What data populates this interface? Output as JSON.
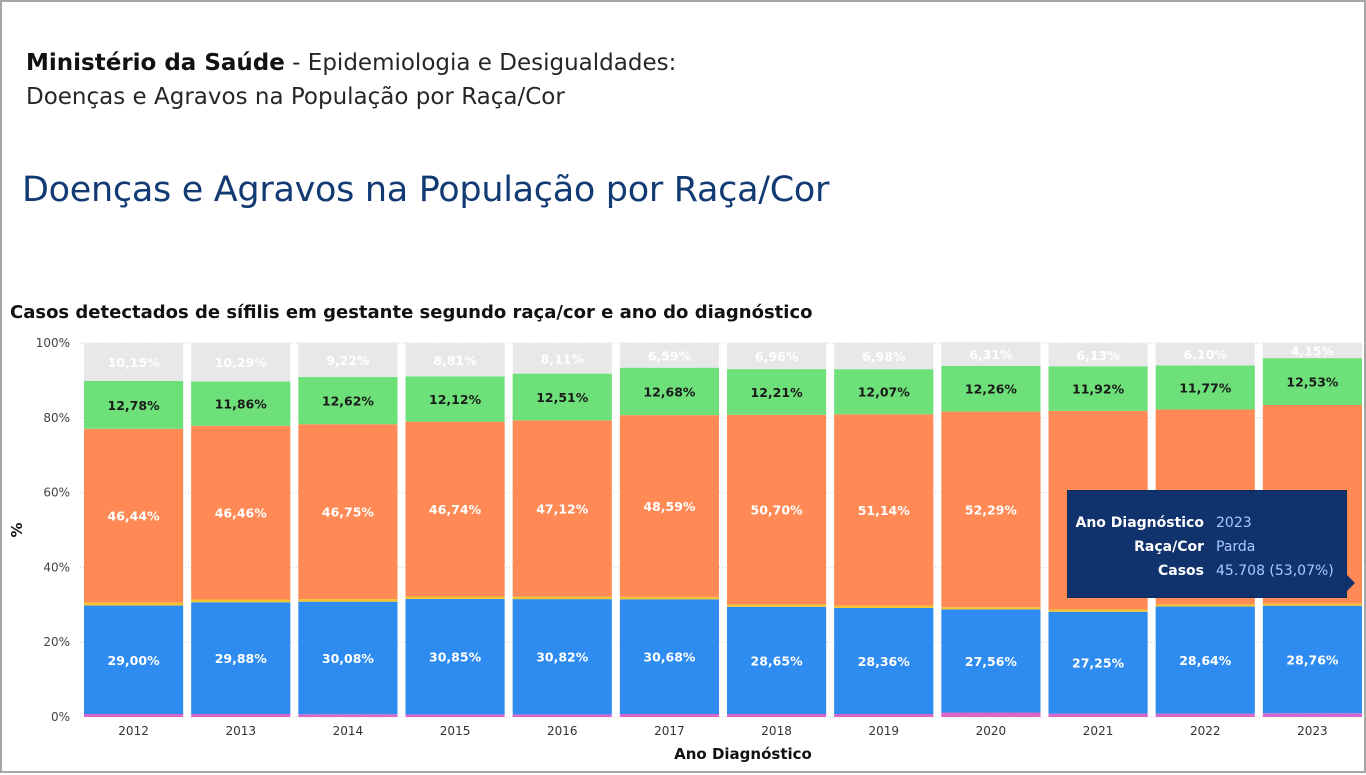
{
  "header": {
    "org_bold": "Ministério da Saúde",
    "org_rest": " - Epidemiologia e Desigualdades:",
    "subtitle": "Doenças e Agravos na População por Raça/Cor",
    "page_title": "Doenças e Agravos na População por Raça/Cor"
  },
  "chart_data": {
    "type": "bar",
    "stacked": true,
    "title": "Casos detectados de sífilis em gestante segundo raça/cor e ano do diagnóstico",
    "xlabel": "Ano Diagnóstico",
    "ylabel": "%",
    "ylim": [
      0,
      100
    ],
    "yticks": [
      "0%",
      "20%",
      "40%",
      "60%",
      "80%",
      "100%"
    ],
    "categories": [
      "2012",
      "2013",
      "2014",
      "2015",
      "2016",
      "2017",
      "2018",
      "2019",
      "2020",
      "2021",
      "2022",
      "2023"
    ],
    "series": [
      {
        "color": "#d966c9",
        "values": [
          0.8,
          0.8,
          0.75,
          0.7,
          0.7,
          0.8,
          0.8,
          0.8,
          1.2,
          0.9,
          0.9,
          1.0
        ]
      },
      {
        "color": "#2e8cf0",
        "values": [
          29.0,
          29.88,
          30.08,
          30.85,
          30.82,
          30.68,
          28.65,
          28.36,
          27.56,
          27.25,
          28.64,
          28.76
        ],
        "labels": [
          "29,00%",
          "29,88%",
          "30,08%",
          "30,85%",
          "30,82%",
          "30,68%",
          "28,65%",
          "28,36%",
          "27,56%",
          "27,25%",
          "28,64%",
          "28,76%"
        ]
      },
      {
        "color": "#f4c430",
        "values": [
          0.83,
          0.73,
          0.7,
          0.67,
          0.66,
          0.65,
          0.66,
          0.64,
          0.6,
          0.6,
          0.6,
          0.6
        ]
      },
      {
        "name": "Parda",
        "color": "#ff8a55",
        "values": [
          46.44,
          46.46,
          46.75,
          46.74,
          47.12,
          48.59,
          50.7,
          51.14,
          52.29,
          53.1,
          52.08,
          53.07
        ],
        "labels": [
          "46,44%",
          "46,46%",
          "46,75%",
          "46,74%",
          "47,12%",
          "48,59%",
          "50,70%",
          "51,14%",
          "52,29%",
          "",
          "",
          ""
        ]
      },
      {
        "color": "#6ee07a",
        "values": [
          12.78,
          11.86,
          12.62,
          12.12,
          12.51,
          12.68,
          12.21,
          12.07,
          12.26,
          11.92,
          11.77,
          12.53
        ],
        "labels": [
          "12,78%",
          "11,86%",
          "12,62%",
          "12,12%",
          "12,51%",
          "12,68%",
          "12,21%",
          "12,07%",
          "12,26%",
          "11,92%",
          "11,77%",
          "12,53%"
        ]
      },
      {
        "color": "#e8e8e8",
        "values": [
          10.15,
          10.29,
          9.22,
          8.81,
          8.11,
          6.59,
          6.96,
          6.98,
          6.31,
          6.13,
          6.1,
          4.15
        ],
        "labels": [
          "10,15%",
          "10,29%",
          "9,22%",
          "8,81%",
          "8,11%",
          "6,59%",
          "6,96%",
          "6,98%",
          "6,31%",
          "6,13%",
          "6,10%",
          "4,15%"
        ]
      }
    ]
  },
  "tooltip": {
    "rows": [
      {
        "key": "Ano Diagnóstico",
        "value": "2023"
      },
      {
        "key": "Raça/Cor",
        "value": "Parda"
      },
      {
        "key": "Casos",
        "value": "45.708 (53,07%)"
      }
    ]
  }
}
